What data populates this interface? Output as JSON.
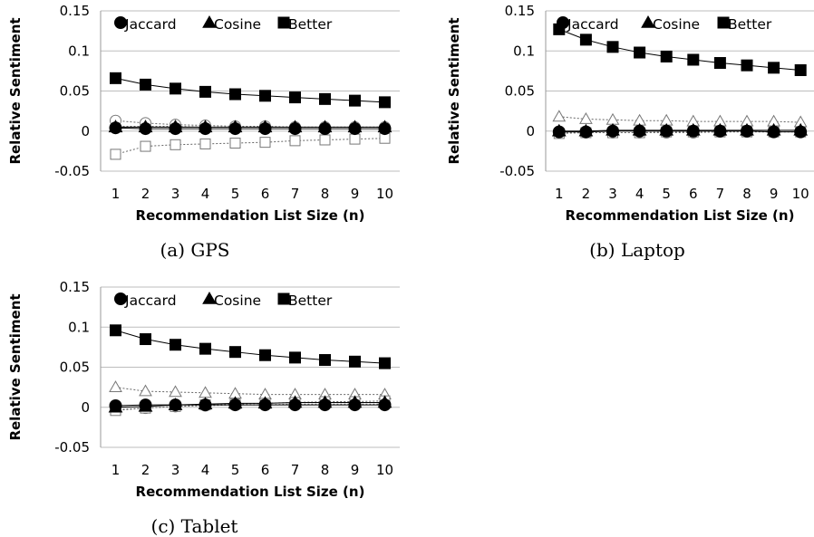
{
  "chart_data": [
    {
      "type": "line",
      "panel_id": "gps",
      "caption": "(a)  GPS",
      "xlabel": "Recommendation List Size (n)",
      "ylabel": "Relative Sentiment",
      "x": [
        1,
        2,
        3,
        4,
        5,
        6,
        7,
        8,
        9,
        10
      ],
      "ylim": [
        -0.05,
        0.15
      ],
      "yticks": [
        "0.15",
        "0.1",
        "0.05",
        "0",
        "-0.05"
      ],
      "ytick_values": [
        0.15,
        0.1,
        0.05,
        0,
        -0.05
      ],
      "grid": true,
      "legend": {
        "placement": "top",
        "entries": [
          "Jaccard",
          "Cosine",
          "Better"
        ]
      },
      "series": [
        {
          "name": "Jaccard",
          "marker": "circle",
          "filled": true,
          "values": [
            0.004,
            0.003,
            0.003,
            0.003,
            0.003,
            0.003,
            0.003,
            0.003,
            0.003,
            0.003
          ]
        },
        {
          "name": "Cosine",
          "marker": "triangle",
          "filled": true,
          "values": [
            0.005,
            0.005,
            0.005,
            0.005,
            0.005,
            0.005,
            0.005,
            0.005,
            0.005,
            0.005
          ]
        },
        {
          "name": "Better",
          "marker": "square",
          "filled": true,
          "values": [
            0.066,
            0.058,
            0.053,
            0.049,
            0.046,
            0.044,
            0.042,
            0.04,
            0.038,
            0.036
          ]
        },
        {
          "marker": "circle",
          "filled": false,
          "values": [
            0.013,
            0.01,
            0.008,
            0.007,
            0.006,
            0.006,
            0.005,
            0.005,
            0.005,
            0.005
          ]
        },
        {
          "marker": "triangle",
          "filled": false,
          "values": [
            0.006,
            0.006,
            0.006,
            0.005,
            0.005,
            0.005,
            0.005,
            0.005,
            0.005,
            0.005
          ]
        },
        {
          "marker": "square",
          "filled": false,
          "values": [
            -0.029,
            -0.019,
            -0.017,
            -0.016,
            -0.015,
            -0.014,
            -0.012,
            -0.011,
            -0.01,
            -0.009
          ]
        }
      ]
    },
    {
      "type": "line",
      "panel_id": "laptop",
      "caption": "(b)  Laptop",
      "xlabel": "Recommendation List Size (n)",
      "ylabel": "Relative Sentiment",
      "x": [
        1,
        2,
        3,
        4,
        5,
        6,
        7,
        8,
        9,
        10
      ],
      "ylim": [
        -0.05,
        0.15
      ],
      "yticks": [
        "0.15",
        "0.1",
        "0.05",
        "0",
        "-0.05"
      ],
      "ytick_values": [
        0.15,
        0.1,
        0.05,
        0,
        -0.05
      ],
      "grid": true,
      "legend": {
        "placement": "top",
        "entries": [
          "Jaccard",
          "Cosine",
          "Better"
        ]
      },
      "series": [
        {
          "name": "Jaccard",
          "marker": "circle",
          "filled": true,
          "values": [
            -0.001,
            -0.001,
            0.0,
            0.0,
            0.0,
            0.0,
            0.0,
            0.0,
            -0.001,
            -0.001
          ]
        },
        {
          "name": "Cosine",
          "marker": "triangle",
          "filled": true,
          "values": [
            0.0,
            0.0,
            0.001,
            0.001,
            0.001,
            0.001,
            0.001,
            0.001,
            0.001,
            0.001
          ]
        },
        {
          "name": "Better",
          "marker": "square",
          "filled": true,
          "values": [
            0.127,
            0.114,
            0.105,
            0.098,
            0.093,
            0.089,
            0.085,
            0.082,
            0.079,
            0.076
          ]
        },
        {
          "marker": "circle",
          "filled": false,
          "values": [
            -0.002,
            -0.002,
            -0.002,
            -0.002,
            -0.002,
            -0.002,
            -0.001,
            -0.001,
            -0.001,
            -0.001
          ]
        },
        {
          "marker": "triangle",
          "filled": false,
          "values": [
            0.018,
            0.015,
            0.014,
            0.013,
            0.013,
            0.012,
            0.012,
            0.012,
            0.012,
            0.011
          ]
        },
        {
          "marker": "square",
          "filled": false,
          "values": [
            -0.003,
            -0.002,
            -0.002,
            -0.002,
            -0.001,
            -0.001,
            -0.001,
            -0.001,
            -0.001,
            -0.001
          ]
        }
      ]
    },
    {
      "type": "line",
      "panel_id": "tablet",
      "caption": "(c)  Tablet",
      "xlabel": "Recommendation List Size (n)",
      "ylabel": "Relative Sentiment",
      "x": [
        1,
        2,
        3,
        4,
        5,
        6,
        7,
        8,
        9,
        10
      ],
      "ylim": [
        -0.05,
        0.15
      ],
      "yticks": [
        "0.15",
        "0.1",
        "0.05",
        "0",
        "-0.05"
      ],
      "ytick_values": [
        0.15,
        0.1,
        0.05,
        0,
        -0.05
      ],
      "grid": true,
      "legend": {
        "placement": "top",
        "entries": [
          "Jaccard",
          "Cosine",
          "Better"
        ]
      },
      "series": [
        {
          "name": "Jaccard",
          "marker": "circle",
          "filled": true,
          "values": [
            0.002,
            0.003,
            0.003,
            0.003,
            0.003,
            0.003,
            0.003,
            0.003,
            0.003,
            0.003
          ]
        },
        {
          "name": "Cosine",
          "marker": "triangle",
          "filled": true,
          "values": [
            0.0,
            0.001,
            0.003,
            0.004,
            0.005,
            0.005,
            0.006,
            0.006,
            0.006,
            0.006
          ]
        },
        {
          "name": "Better",
          "marker": "square",
          "filled": true,
          "values": [
            0.096,
            0.085,
            0.078,
            0.073,
            0.069,
            0.065,
            0.062,
            0.059,
            0.057,
            0.055
          ]
        },
        {
          "marker": "circle",
          "filled": false,
          "values": [
            -0.003,
            -0.001,
            0.001,
            0.002,
            0.003,
            0.003,
            0.004,
            0.004,
            0.004,
            0.004
          ]
        },
        {
          "marker": "triangle",
          "filled": false,
          "values": [
            0.025,
            0.02,
            0.019,
            0.018,
            0.017,
            0.016,
            0.016,
            0.016,
            0.016,
            0.016
          ]
        },
        {
          "marker": "square",
          "filled": false,
          "values": [
            -0.004,
            -0.001,
            0.001,
            0.003,
            0.004,
            0.005,
            0.006,
            0.007,
            0.007,
            0.008
          ]
        }
      ]
    }
  ]
}
